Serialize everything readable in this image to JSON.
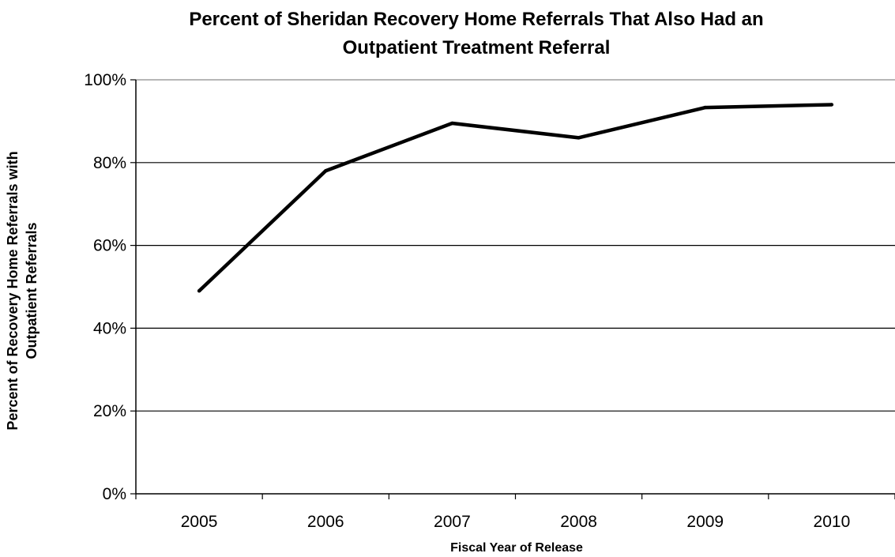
{
  "chart_data": {
    "type": "line",
    "title_lines": [
      "Percent of Sheridan Recovery Home Referrals That Also Had an",
      "Outpatient Treatment Referral"
    ],
    "xlabel": "Fiscal Year of Release",
    "ylabel_lines": [
      "Percent of Recovery Home Referrals with",
      "Outpatient Referrals"
    ],
    "categories": [
      "2005",
      "2006",
      "2007",
      "2008",
      "2009",
      "2010"
    ],
    "series": [
      {
        "values": [
          49,
          78,
          89.5,
          86,
          93.3,
          94
        ]
      }
    ],
    "y_ticks": [
      0,
      20,
      40,
      60,
      80,
      100
    ],
    "y_tick_labels": [
      "0%",
      "20%",
      "40%",
      "60%",
      "80%",
      "100%"
    ],
    "ylim": [
      0,
      100
    ],
    "grid": true,
    "legend": "none",
    "line_color": "#000000"
  }
}
